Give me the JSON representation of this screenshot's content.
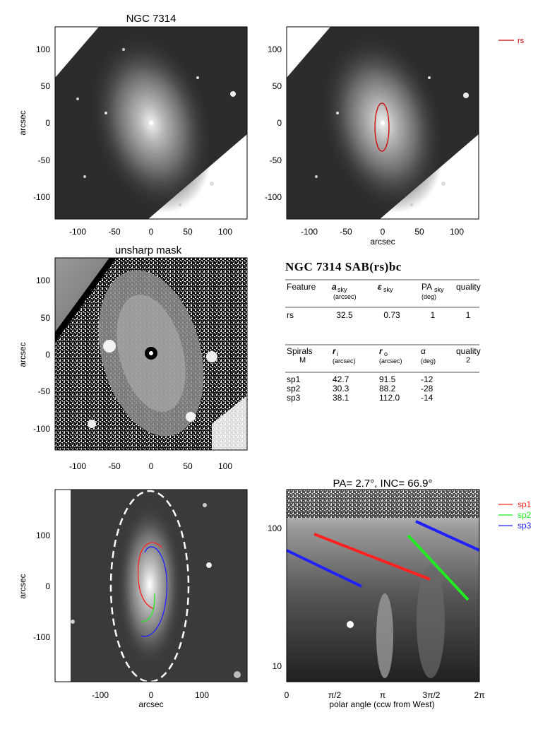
{
  "panels": {
    "p1": {
      "title": "NGC 7314",
      "ylabel": "arcsec",
      "xticks": [
        "-100",
        "-50",
        "0",
        "50",
        "100"
      ],
      "yticks": [
        "100",
        "50",
        "0",
        "-50",
        "-100"
      ]
    },
    "p2": {
      "xlabel": "arcsec",
      "xticks": [
        "-100",
        "-50",
        "0",
        "50",
        "100"
      ],
      "yticks": [
        "100",
        "50",
        "0",
        "-50",
        "-100"
      ],
      "legend": "rs"
    },
    "p3": {
      "title": "unsharp mask",
      "ylabel": "arcsec",
      "xticks": [
        "-100",
        "-50",
        "0",
        "50",
        "100"
      ],
      "yticks": [
        "100",
        "50",
        "0",
        "-50",
        "-100"
      ]
    },
    "p5": {
      "xlabel": "arcsec",
      "ylabel": "arcsec",
      "xticks": [
        "-100",
        "0",
        "100"
      ],
      "yticks": [
        "100",
        "0",
        "-100"
      ]
    },
    "p6": {
      "title": "PA=   2.7°, INC=  66.9°",
      "xlabel": "polar angle (ccw from West)",
      "xticks": [
        "0",
        "π/2",
        "π",
        "3π/2",
        "2π"
      ],
      "yticks": [
        "100",
        "10"
      ],
      "legend": [
        "sp1",
        "sp2",
        "sp3"
      ]
    }
  },
  "colors": {
    "sp1": "#ff2020",
    "sp2": "#20ee20",
    "sp3": "#2020ff",
    "rs": "#d00000"
  },
  "table": {
    "heading": "NGC 7314  SAB(rs)bc",
    "feat_header": {
      "c1": "Feature",
      "c2": "a",
      "c2sub": "sky",
      "c2unit": "(arcsec)",
      "c3": "ε",
      "c3sub": "sky",
      "c4": "PA",
      "c4sub": "sky",
      "c4unit": "(deg)",
      "c5": "quality"
    },
    "feat_rows": [
      {
        "name": "rs",
        "a": "32.5",
        "e": "0.73",
        "pa": "1",
        "q": "1"
      }
    ],
    "spiral_header": {
      "c1": "Spirals",
      "c1b": "M",
      "c2": "r",
      "c2sub": "i",
      "c2unit": "(arcsec)",
      "c3": "r",
      "c3sub": "o",
      "c3unit": "(arcsec)",
      "c4": "α",
      "c4unit": "(deg)",
      "c5": "quality",
      "c5b": "2"
    },
    "spiral_rows": [
      {
        "name": "sp1",
        "ri": "42.7",
        "ro": "91.5",
        "alpha": "-12"
      },
      {
        "name": "sp2",
        "ri": "30.3",
        "ro": "88.2",
        "alpha": "-28"
      },
      {
        "name": "sp3",
        "ri": "38.1",
        "ro": "112.0",
        "alpha": "-14"
      }
    ]
  }
}
